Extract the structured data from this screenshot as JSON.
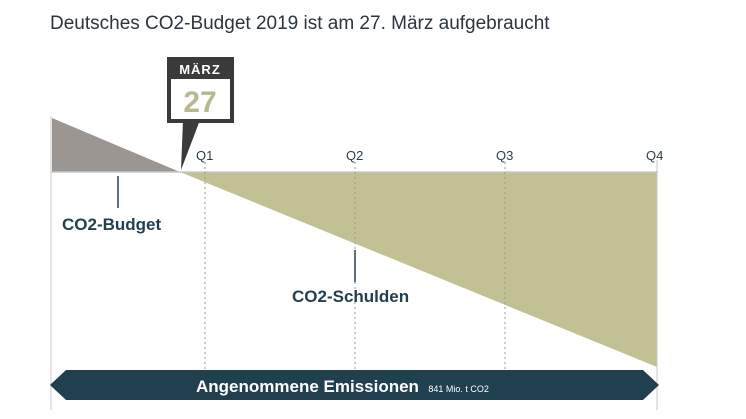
{
  "title": "Deutsches CO2-Budget 2019 ist am 27. März aufgebraucht",
  "calendar": {
    "month": "MÄRZ",
    "day": "27"
  },
  "quarters": [
    "Q1",
    "Q2",
    "Q3",
    "Q4"
  ],
  "labels": {
    "budget": "CO2-Budget",
    "debt": "CO2-Schulden"
  },
  "emissions": {
    "label": "Angenommene Emissionen",
    "amount": "841 Mio. t CO2"
  },
  "colors": {
    "budget": "#9c9693",
    "debt": "#c2c193",
    "arrow": "#203f4f",
    "calendar_dark": "#3a3a3a",
    "calendar_day": "#b9b88e"
  }
}
